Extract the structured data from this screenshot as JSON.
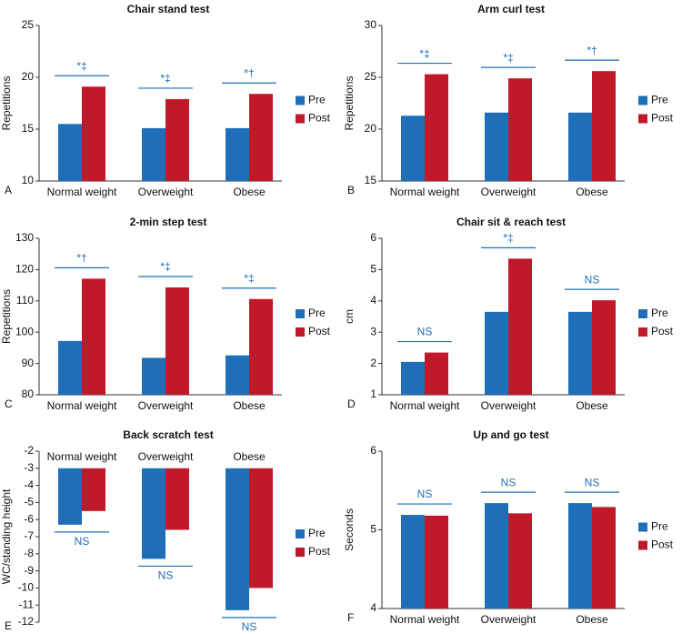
{
  "chart_data": [
    {
      "type": "bar",
      "title": "Chair stand test",
      "ylabel": "Repetitions",
      "panel_label": "A",
      "categories": [
        "Normal weight",
        "Overweight",
        "Obese"
      ],
      "series": [
        {
          "name": "Pre",
          "color": "#1f6fb8",
          "values": [
            15.5,
            15.1,
            15.1
          ]
        },
        {
          "name": "Post",
          "color": "#c0192a",
          "values": [
            19.1,
            17.9,
            18.4
          ]
        }
      ],
      "annotations": [
        "*‡",
        "*‡",
        "*†"
      ],
      "ylim": [
        10,
        25
      ],
      "yticks": [
        10,
        15,
        20,
        25
      ]
    },
    {
      "type": "bar",
      "title": "Arm curl test",
      "ylabel": "Repetitions",
      "panel_label": "B",
      "categories": [
        "Normal weight",
        "Overweight",
        "Obese"
      ],
      "series": [
        {
          "name": "Pre",
          "color": "#1f6fb8",
          "values": [
            21.3,
            21.6,
            21.6
          ]
        },
        {
          "name": "Post",
          "color": "#c0192a",
          "values": [
            25.3,
            24.9,
            25.6
          ]
        }
      ],
      "annotations": [
        "*‡",
        "*‡",
        "*†"
      ],
      "ylim": [
        15,
        30
      ],
      "yticks": [
        15,
        20,
        25,
        30
      ]
    },
    {
      "type": "bar",
      "title": "2-min step test",
      "ylabel": "Repetitions",
      "panel_label": "C",
      "categories": [
        "Normal weight",
        "Overweight",
        "Obese"
      ],
      "series": [
        {
          "name": "Pre",
          "color": "#1f6fb8",
          "values": [
            97.2,
            91.8,
            92.6
          ]
        },
        {
          "name": "Post",
          "color": "#c0192a",
          "values": [
            117.1,
            114.3,
            110.6
          ]
        }
      ],
      "annotations": [
        "*†",
        "*‡",
        "*‡"
      ],
      "ylim": [
        80,
        130
      ],
      "yticks": [
        80,
        90,
        100,
        110,
        120,
        130
      ]
    },
    {
      "type": "bar",
      "title": "Chair sit & reach test",
      "ylabel": "cm",
      "panel_label": "D",
      "categories": [
        "Normal weight",
        "Overweight",
        "Obese"
      ],
      "series": [
        {
          "name": "Pre",
          "color": "#1f6fb8",
          "values": [
            2.05,
            3.65,
            3.65
          ]
        },
        {
          "name": "Post",
          "color": "#c0192a",
          "values": [
            2.35,
            5.35,
            4.02
          ]
        }
      ],
      "annotations": [
        "NS",
        "*‡",
        "NS"
      ],
      "ylim": [
        1,
        6
      ],
      "yticks": [
        1,
        2,
        3,
        4,
        5,
        6
      ]
    },
    {
      "type": "bar",
      "title": "Back scratch test",
      "ylabel": "WC/standing height",
      "panel_label": "E",
      "categories": [
        "Normal weight",
        "Overweight",
        "Obese"
      ],
      "series": [
        {
          "name": "Pre",
          "color": "#1f6fb8",
          "values": [
            -6.3,
            -8.3,
            -11.3
          ]
        },
        {
          "name": "Post",
          "color": "#c0192a",
          "values": [
            -5.5,
            -6.6,
            -10.0
          ]
        }
      ],
      "annotations": [
        "NS",
        "NS",
        "NS"
      ],
      "ylim": [
        -12,
        -2
      ],
      "yticks": [
        -12,
        -11,
        -10,
        -9,
        -8,
        -7,
        -6,
        -5,
        -4,
        -3,
        -2
      ],
      "baseline": -3
    },
    {
      "type": "bar",
      "title": "Up and go test",
      "ylabel": "Seconds",
      "panel_label": "F",
      "categories": [
        "Normal weight",
        "Overweight",
        "Obese"
      ],
      "series": [
        {
          "name": "Pre",
          "color": "#1f6fb8",
          "values": [
            5.19,
            5.34,
            5.34
          ]
        },
        {
          "name": "Post",
          "color": "#c0192a",
          "values": [
            5.18,
            5.21,
            5.29
          ]
        }
      ],
      "annotations": [
        "NS",
        "NS",
        "NS"
      ],
      "ylim": [
        4,
        6
      ],
      "yticks": [
        4,
        5,
        6
      ]
    }
  ]
}
